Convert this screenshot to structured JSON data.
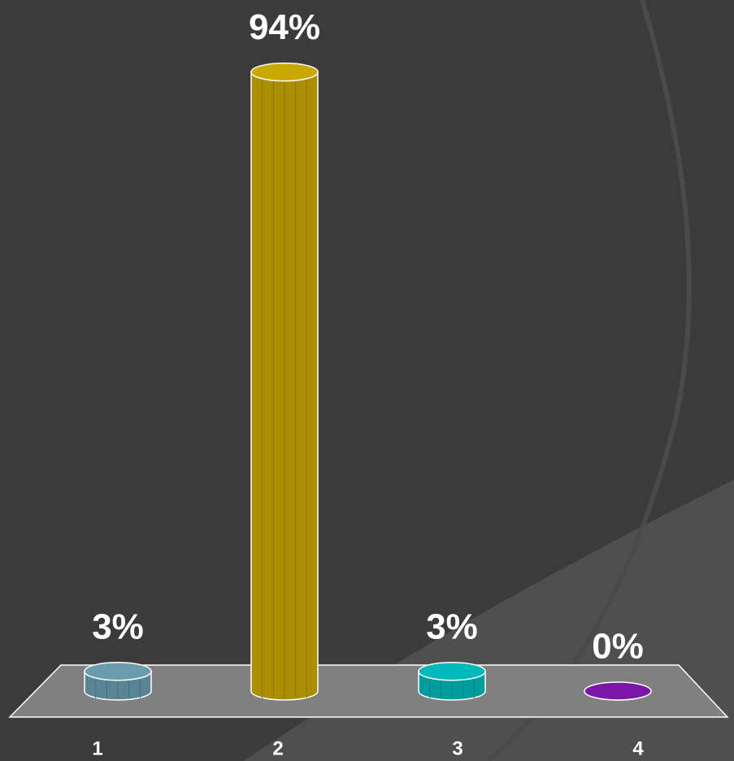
{
  "chart_data": {
    "type": "bar",
    "categories": [
      "1",
      "2",
      "3",
      "4"
    ],
    "values": [
      3,
      94,
      3,
      0
    ],
    "value_labels": [
      "3%",
      "94%",
      "3%",
      "0%"
    ],
    "colors": [
      "#6a9cae",
      "#c9a800",
      "#00b9b9",
      "#7a16a8"
    ]
  }
}
